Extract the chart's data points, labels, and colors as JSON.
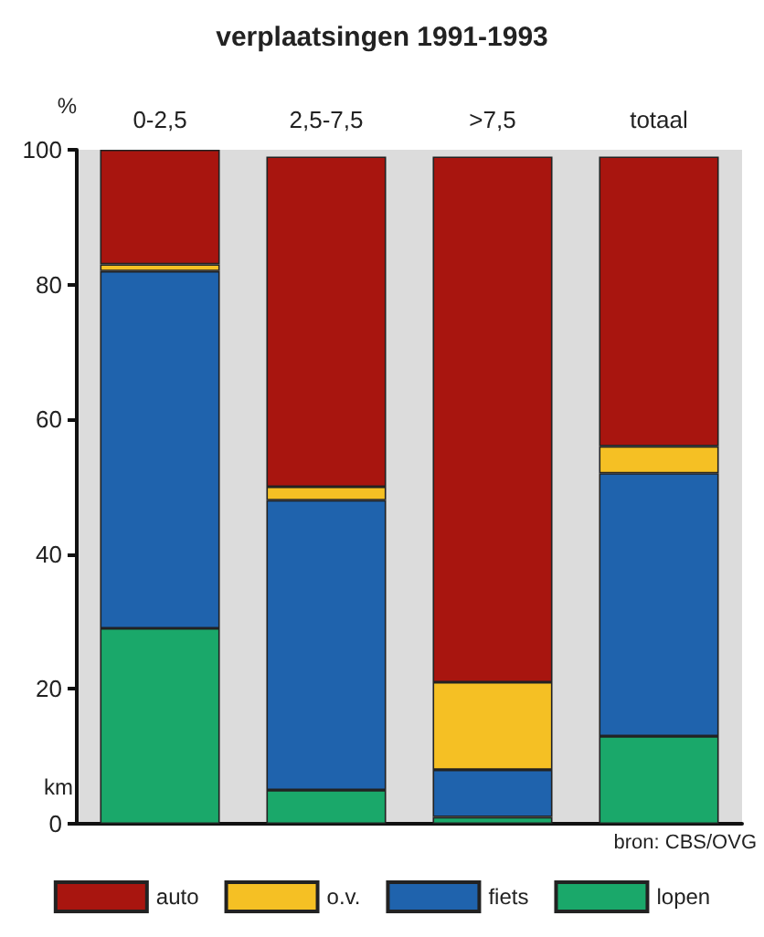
{
  "chart_data": {
    "type": "bar",
    "title": "verplaatsingen 1991-1993",
    "xlabel": "km",
    "ylabel": "%",
    "categories": [
      "0-2,5",
      "2,5-7,5",
      ">7,5",
      "totaal"
    ],
    "stacked": true,
    "series": [
      {
        "name": "lopen",
        "color": "#1aa86a",
        "values": [
          29,
          5,
          1,
          13
        ]
      },
      {
        "name": "fiets",
        "color": "#1f63ad",
        "values": [
          53,
          43,
          7,
          39
        ]
      },
      {
        "name": "o.v.",
        "color": "#f5c024",
        "values": [
          1,
          2,
          13,
          4
        ]
      },
      {
        "name": "auto",
        "color": "#a8150f",
        "values": [
          17,
          49,
          78,
          43
        ]
      }
    ],
    "ylim": [
      0,
      100
    ],
    "yticks": [
      0,
      20,
      40,
      60,
      80,
      100
    ],
    "grid": false,
    "legend": "bottom",
    "annotations": [
      "bron: CBS/OVG"
    ]
  }
}
